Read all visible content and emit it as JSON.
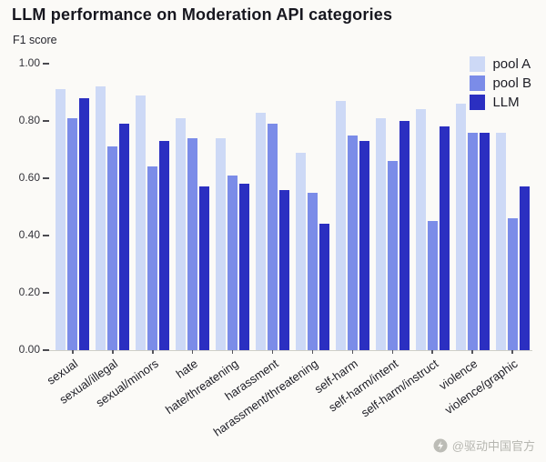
{
  "watermark": {
    "text": "@驱动中国官方"
  },
  "chart_data": {
    "type": "bar",
    "title": "LLM performance on Moderation API categories",
    "ylabel": "F1 score",
    "xlabel": "",
    "ylim": [
      0,
      1.0
    ],
    "yticks": [
      "0.00",
      "0.20",
      "0.40",
      "0.60",
      "0.80",
      "1.00"
    ],
    "grid": false,
    "legend_position": "top-right",
    "categories": [
      "sexual",
      "sexual/illegal",
      "sexual/minors",
      "hate",
      "hate/threatening",
      "harassment",
      "harassment/threatening",
      "self-harm",
      "self-harm/intent",
      "self-harm/instruct",
      "violence",
      "violence/graphic"
    ],
    "series": [
      {
        "name": "pool A",
        "color": "#cdd9f6",
        "values": [
          0.91,
          0.92,
          0.89,
          0.81,
          0.74,
          0.83,
          0.69,
          0.87,
          0.81,
          0.84,
          0.86,
          0.76
        ]
      },
      {
        "name": "pool B",
        "color": "#7b8ce8",
        "values": [
          0.81,
          0.71,
          0.64,
          0.74,
          0.61,
          0.79,
          0.55,
          0.75,
          0.66,
          0.45,
          0.76,
          0.46
        ]
      },
      {
        "name": "LLM",
        "color": "#2b2fc1",
        "values": [
          0.88,
          0.79,
          0.73,
          0.57,
          0.58,
          0.56,
          0.44,
          0.73,
          0.8,
          0.78,
          0.76,
          0.57
        ]
      }
    ]
  }
}
